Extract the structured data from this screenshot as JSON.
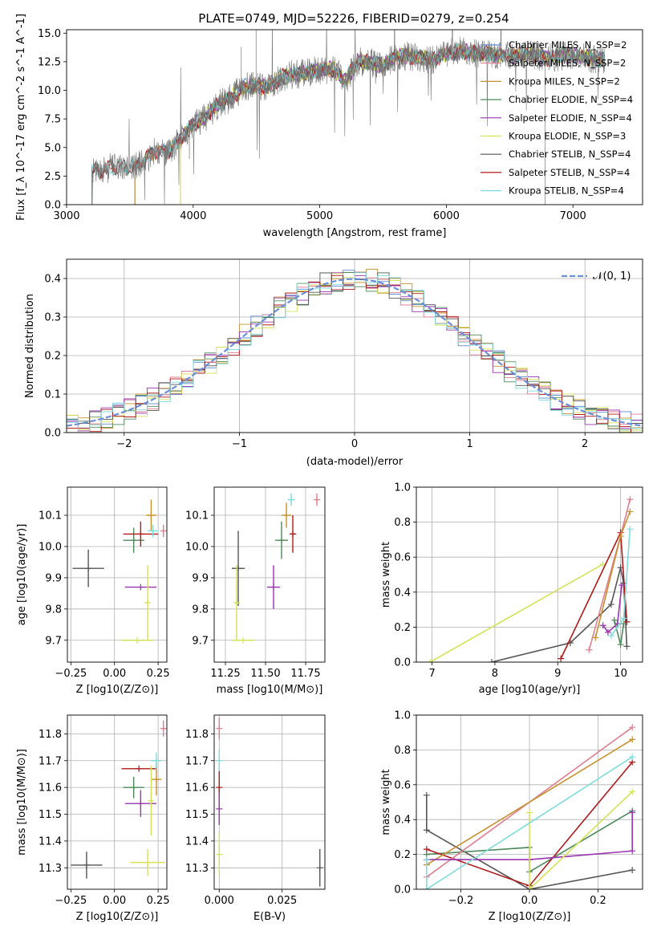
{
  "chart_data": [
    {
      "id": "spectrum",
      "type": "line",
      "title": "PLATE=0749, MJD=52226, FIBERID=0279, z=0.254",
      "xlabel": "wavelength [Angstrom, rest frame]",
      "ylabel": "Flux [f_λ 10^-17 erg cm^-2 s^-1 A^-1]",
      "xlim": [
        3000,
        7550
      ],
      "ylim": [
        0,
        15.3
      ],
      "xticks": [
        "3000",
        "4000",
        "5000",
        "6000",
        "7000"
      ],
      "yticks": [
        "0.0",
        "2.5",
        "5.0",
        "7.5",
        "10.0",
        "12.5",
        "15.0"
      ],
      "legend_position": "top-right",
      "data_curve": {
        "x": [
          3200,
          3300,
          3400,
          3500,
          3600,
          3700,
          3800,
          3900,
          4000,
          4100,
          4200,
          4300,
          4400,
          4500,
          4600,
          4700,
          4800,
          4900,
          5000,
          5100,
          5200,
          5300,
          5400,
          5500,
          5600,
          5700,
          5800,
          5900,
          6000,
          6100,
          6200,
          6300,
          6400,
          6500,
          6600,
          6700,
          6800,
          6900,
          7000,
          7100,
          7200
        ],
        "y": [
          2.8,
          3.1,
          3.3,
          3.1,
          3.7,
          4.7,
          4.6,
          5.7,
          7.0,
          7.7,
          8.8,
          9.3,
          10.3,
          10.3,
          10.4,
          11.2,
          11.4,
          11.5,
          11.8,
          11.9,
          10.8,
          12.5,
          12.4,
          12.2,
          12.9,
          13.0,
          12.8,
          12.7,
          13.2,
          13.4,
          13.3,
          13.2,
          13.1,
          13.0,
          13.2,
          13.1,
          12.8,
          13.0,
          13.1,
          12.9,
          12.7
        ]
      },
      "series": [
        {
          "name": "Chabrier MILES, N_SSP=2",
          "color": "#5b8bd0",
          "x_start": 3540
        },
        {
          "name": "Salpeter MILES, N_SSP=2",
          "color": "#e07e91",
          "x_start": 3540
        },
        {
          "name": "Kroupa MILES, N_SSP=2",
          "color": "#c8912e",
          "x_start": 3540
        },
        {
          "name": "Chabrier ELODIE, N_SSP=4",
          "color": "#4e8a5b",
          "x_start": 3900
        },
        {
          "name": "Salpeter ELODIE, N_SSP=4",
          "color": "#9a34b0",
          "x_start": 3900
        },
        {
          "name": "Kroupa ELODIE, N_SSP=3",
          "color": "#d5e258",
          "x_start": 3900
        },
        {
          "name": "Chabrier STELIB, N_SSP=4",
          "color": "#555555",
          "x_start": 3200
        },
        {
          "name": "Salpeter STELIB, N_SSP=4",
          "color": "#b01a1a",
          "x_start": 3200
        },
        {
          "name": "Kroupa STELIB, N_SSP=4",
          "color": "#7edcdc",
          "x_start": 3200
        }
      ]
    },
    {
      "id": "residuals",
      "type": "line",
      "xlabel": "(data-model)/error",
      "ylabel": "Normed distribution",
      "xlim": [
        -2.5,
        2.5
      ],
      "ylim": [
        0,
        0.45
      ],
      "xticks": [
        "−2",
        "−1",
        "0",
        "1",
        "2"
      ],
      "yticks": [
        "0.0",
        "0.1",
        "0.2",
        "0.3",
        "0.4"
      ],
      "grid": true,
      "legend_position": "top-right",
      "gaussian_label": "𝒩(0, 1)",
      "gaussian_color": "#6b8fd8"
    },
    {
      "id": "age-vs-Z",
      "type": "scatter",
      "xlabel": "Z [log10(Z/Z⊙)]",
      "ylabel": "age  [log10(age/yr)]",
      "xlim": [
        -0.27,
        0.3
      ],
      "ylim": [
        9.63,
        10.19
      ],
      "xticks": [
        "−0.25",
        "0.00",
        "0.25"
      ],
      "yticks": [
        "9.7",
        "9.8",
        "9.9",
        "10.0",
        "10.1"
      ],
      "grid": true,
      "points": [
        {
          "x": -0.15,
          "y": 9.93,
          "xerr": 0.09,
          "yerr": 0.06,
          "color": "#555555"
        },
        {
          "x": 0.11,
          "y": 10.02,
          "xerr": 0.06,
          "yerr": 0.04,
          "color": "#4e8a5b"
        },
        {
          "x": 0.15,
          "y": 10.04,
          "xerr": 0.1,
          "yerr": 0.04,
          "color": "#b01a1a"
        },
        {
          "x": 0.21,
          "y": 10.1,
          "xerr": 0.03,
          "yerr": 0.05,
          "color": "#c8912e"
        },
        {
          "x": 0.22,
          "y": 10.05,
          "xerr": 0.03,
          "yerr": 0.02,
          "color": "#7edcdc"
        },
        {
          "x": 0.28,
          "y": 10.05,
          "xerr": 0.01,
          "yerr": 0.02,
          "color": "#e07e91"
        },
        {
          "x": 0.15,
          "y": 9.87,
          "xerr": 0.09,
          "yerr": 0.0,
          "color": "#9a34b0"
        },
        {
          "x": 0.19,
          "y": 9.82,
          "xerr": 0.01,
          "yerr": 0.12,
          "color": "#d5e258"
        },
        {
          "x": 0.13,
          "y": 9.7,
          "xerr": 0.09,
          "yerr": 0.0,
          "color": "#d5e258"
        }
      ]
    },
    {
      "id": "age-vs-mass",
      "type": "scatter",
      "xlabel": "mass [log10(M/M⊙)]",
      "ylabel": "",
      "xlim": [
        11.18,
        11.87
      ],
      "ylim": [
        9.63,
        10.19
      ],
      "xticks": [
        "11.25",
        "11.50",
        "11.75"
      ],
      "yticks": [
        "9.7",
        "9.8",
        "9.9",
        "10.0",
        "10.1"
      ],
      "grid": true,
      "points": [
        {
          "x": 11.33,
          "y": 9.93,
          "xerr": 0.04,
          "yerr": 0.12,
          "color": "#555555"
        },
        {
          "x": 11.6,
          "y": 10.02,
          "xerr": 0.04,
          "yerr": 0.06,
          "color": "#4e8a5b"
        },
        {
          "x": 11.67,
          "y": 10.04,
          "xerr": 0.02,
          "yerr": 0.06,
          "color": "#b01a1a"
        },
        {
          "x": 11.63,
          "y": 10.1,
          "xerr": 0.03,
          "yerr": 0.04,
          "color": "#c8912e"
        },
        {
          "x": 11.66,
          "y": 10.15,
          "xerr": 0.02,
          "yerr": 0.02,
          "color": "#7edcdc"
        },
        {
          "x": 11.82,
          "y": 10.15,
          "xerr": 0.01,
          "yerr": 0.02,
          "color": "#e07e91"
        },
        {
          "x": 11.55,
          "y": 9.87,
          "xerr": 0.04,
          "yerr": 0.07,
          "color": "#9a34b0"
        },
        {
          "x": 11.32,
          "y": 9.82,
          "xerr": 0.02,
          "yerr": 0.12,
          "color": "#d5e258"
        },
        {
          "x": 11.36,
          "y": 9.7,
          "xerr": 0.07,
          "yerr": 0.0,
          "color": "#d5e258"
        }
      ]
    },
    {
      "id": "mass-weight-vs-age",
      "type": "line",
      "xlabel": "age  [log10(age/yr)]",
      "ylabel": "mass weight",
      "xlim": [
        6.75,
        10.35
      ],
      "ylim": [
        0,
        1.0
      ],
      "xticks": [
        "7",
        "8",
        "9",
        "10"
      ],
      "yticks": [
        "0.0",
        "0.2",
        "0.4",
        "0.6",
        "0.8",
        "1.0"
      ],
      "grid": true,
      "series": [
        {
          "color": "#d5e258",
          "x": [
            6.97,
            9.72
          ],
          "y": [
            0.0,
            0.56
          ]
        },
        {
          "color": "#555555",
          "x": [
            7.95,
            9.2,
            9.85,
            10.0,
            10.05,
            10.1
          ],
          "y": [
            0.0,
            0.11,
            0.33,
            0.54,
            0.45,
            0.09
          ]
        },
        {
          "color": "#b01a1a",
          "x": [
            9.05,
            10.0,
            10.1
          ],
          "y": [
            0.02,
            0.74,
            0.23
          ]
        },
        {
          "color": "#e07e91",
          "x": [
            9.5,
            10.0,
            10.15
          ],
          "y": [
            0.07,
            0.72,
            0.93
          ]
        },
        {
          "color": "#c8912e",
          "x": [
            9.6,
            10.0,
            10.15
          ],
          "y": [
            0.14,
            0.72,
            0.86
          ]
        },
        {
          "color": "#9a34b0",
          "x": [
            9.72,
            9.8,
            9.95,
            10.02
          ],
          "y": [
            0.21,
            0.17,
            0.22,
            0.44
          ]
        },
        {
          "color": "#4e8a5b",
          "x": [
            9.9,
            10.0,
            10.05
          ],
          "y": [
            0.24,
            0.1,
            0.22
          ]
        },
        {
          "color": "#7edcdc",
          "x": [
            9.85,
            10.05,
            10.15
          ],
          "y": [
            0.15,
            0.25,
            0.76
          ]
        }
      ]
    },
    {
      "id": "mass-vs-Z",
      "type": "scatter",
      "xlabel": "Z [log10(Z/Z⊙)]",
      "ylabel": "mass [log10(M/M⊙)]",
      "xlim": [
        -0.27,
        0.3
      ],
      "ylim": [
        11.22,
        11.87
      ],
      "xticks": [
        "−0.25",
        "0.00",
        "0.25"
      ],
      "yticks": [
        "11.3",
        "11.4",
        "11.5",
        "11.6",
        "11.7",
        "11.8"
      ],
      "grid": true,
      "points": [
        {
          "x": -0.16,
          "y": 11.31,
          "xerr": 0.09,
          "yerr": 0.05,
          "color": "#555555"
        },
        {
          "x": 0.11,
          "y": 11.6,
          "xerr": 0.06,
          "yerr": 0.04,
          "color": "#4e8a5b"
        },
        {
          "x": 0.14,
          "y": 11.67,
          "xerr": 0.1,
          "yerr": 0.0,
          "color": "#b01a1a"
        },
        {
          "x": 0.24,
          "y": 11.63,
          "xerr": 0.03,
          "yerr": 0.06,
          "color": "#c8912e"
        },
        {
          "x": 0.24,
          "y": 11.7,
          "xerr": 0.03,
          "yerr": 0.03,
          "color": "#7edcdc"
        },
        {
          "x": 0.28,
          "y": 11.82,
          "xerr": 0.01,
          "yerr": 0.03,
          "color": "#e07e91"
        },
        {
          "x": 0.15,
          "y": 11.54,
          "xerr": 0.09,
          "yerr": 0.05,
          "color": "#9a34b0"
        },
        {
          "x": 0.19,
          "y": 11.32,
          "xerr": 0.1,
          "yerr": 0.05,
          "color": "#d5e258"
        },
        {
          "x": 0.21,
          "y": 11.55,
          "xerr": 0.0,
          "yerr": 0.13,
          "color": "#d5e258"
        }
      ]
    },
    {
      "id": "mass-vs-ebv",
      "type": "scatter",
      "xlabel": "E(B-V)",
      "ylabel": "",
      "xlim": [
        -0.002,
        0.042
      ],
      "ylim": [
        11.22,
        11.87
      ],
      "xticks": [
        "0.000",
        "0.025"
      ],
      "yticks": [
        "11.3",
        "11.4",
        "11.5",
        "11.6",
        "11.7",
        "11.8"
      ],
      "grid": true,
      "points": [
        {
          "x": 0.0,
          "y": 11.82,
          "xerr": 0.0,
          "yerr": 0.04,
          "color": "#e07e91"
        },
        {
          "x": 0.0,
          "y": 11.7,
          "xerr": 0.0,
          "yerr": 0.04,
          "color": "#7edcdc"
        },
        {
          "x": 0.0,
          "y": 11.6,
          "xerr": 0.0,
          "yerr": 0.06,
          "color": "#b01a1a"
        },
        {
          "x": 0.0,
          "y": 11.52,
          "xerr": 0.0,
          "yerr": 0.06,
          "color": "#9a34b0"
        },
        {
          "x": 0.0,
          "y": 11.35,
          "xerr": 0.0,
          "yerr": 0.08,
          "color": "#d5e258"
        },
        {
          "x": 0.04,
          "y": 11.3,
          "xerr": 0.0,
          "yerr": 0.07,
          "color": "#555555"
        }
      ]
    },
    {
      "id": "mass-weight-vs-Z",
      "type": "line",
      "xlabel": "Z [log10(Z/Z⊙)]",
      "ylabel": "mass weight",
      "xlim": [
        -0.33,
        0.33
      ],
      "ylim": [
        0,
        1.0
      ],
      "xticks": [
        "−0.2",
        "0.0",
        "0.2"
      ],
      "yticks": [
        "0.0",
        "0.2",
        "0.4",
        "0.6",
        "0.8",
        "1.0"
      ],
      "grid": true,
      "series": [
        {
          "color": "#555555",
          "x": [
            -0.3,
            -0.3,
            0.0,
            0.3
          ],
          "y": [
            0.54,
            0.34,
            0.0,
            0.11
          ]
        },
        {
          "color": "#4e8a5b",
          "x": [
            -0.3,
            0.0,
            0.0,
            0.3
          ],
          "y": [
            0.2,
            0.24,
            0.1,
            0.45
          ]
        },
        {
          "color": "#b01a1a",
          "x": [
            -0.3,
            0.0,
            0.3
          ],
          "y": [
            0.23,
            0.02,
            0.73
          ]
        },
        {
          "color": "#e07e91",
          "x": [
            -0.3,
            0.3
          ],
          "y": [
            0.07,
            0.93
          ]
        },
        {
          "color": "#c8912e",
          "x": [
            -0.3,
            0.3
          ],
          "y": [
            0.14,
            0.86
          ]
        },
        {
          "color": "#9a34b0",
          "x": [
            -0.3,
            0.0,
            0.3,
            0.3
          ],
          "y": [
            0.17,
            0.17,
            0.22,
            0.44
          ]
        },
        {
          "color": "#d5e258",
          "x": [
            0.0,
            0.0,
            0.3
          ],
          "y": [
            0.44,
            0.0,
            0.56
          ]
        },
        {
          "color": "#7edcdc",
          "x": [
            -0.3,
            -0.3,
            0.3
          ],
          "y": [
            0.17,
            0.0,
            0.76
          ]
        }
      ]
    }
  ]
}
